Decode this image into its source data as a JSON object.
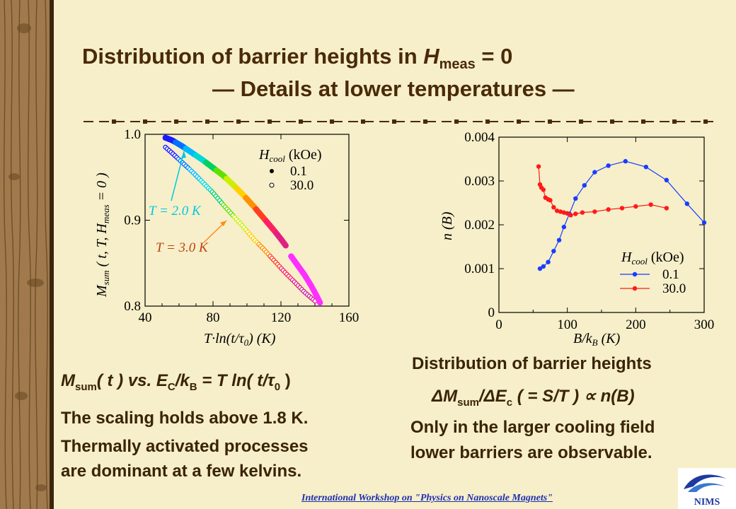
{
  "slide": {
    "title_line1_a": "Distribution of barrier heights in ",
    "title_line1_H": "H",
    "title_line1_sub": "meas",
    "title_line1_b": " = 0",
    "title_line2": "— Details at lower temperatures —",
    "left_caption_M": "M",
    "left_caption_sub": "sum",
    "left_caption_rest": "( t ) vs. E",
    "left_caption_subC": "C",
    "left_caption_k": "/k",
    "left_caption_subB": "B",
    "left_caption_end": " = T ln( t/τ",
    "left_caption_sub0": "0",
    "left_caption_close": " )",
    "left_text": [
      "The scaling holds above 1.8 K.",
      "Thermally activated processes",
      "are dominant at a few kelvins."
    ],
    "right_heading": "Distribution of barrier heights",
    "right_formula_a": "ΔM",
    "right_formula_sub": "sum",
    "right_formula_b": "/ΔE",
    "right_formula_subc": "c",
    "right_formula_c": " ( = S/T ) ∝ n(B)",
    "right_text": [
      "Only in the larger cooling field",
      "lower barriers are observable."
    ],
    "footer": "International Workshop on \"Physics on Nanoscale Magnets\"",
    "logo_text": "NIMS"
  },
  "chart_data": [
    {
      "type": "scatter",
      "xlabel": "T·ln(t/τ0) (K)",
      "ylabel": "Msum ( t, T, Hmeas = 0 )",
      "xlim": [
        40,
        160
      ],
      "ylim": [
        0.8,
        1.0
      ],
      "xticks": [
        40,
        80,
        120,
        160
      ],
      "yticks": [
        0.8,
        0.9,
        1.0
      ],
      "legend_title": "Hcool (kOe)",
      "legend_position": "top-right",
      "annotations": [
        "T = 2.0 K",
        "T = 3.0 K"
      ],
      "series": [
        {
          "name": "0.1",
          "marker": "filled",
          "points": [
            [
              52,
              0.996
            ],
            [
              56,
              0.993
            ],
            [
              62,
              0.986
            ],
            [
              68,
              0.978
            ],
            [
              74,
              0.97
            ],
            [
              80,
              0.961
            ],
            [
              86,
              0.952
            ],
            [
              92,
              0.941
            ],
            [
              98,
              0.929
            ],
            [
              104,
              0.916
            ],
            [
              110,
              0.902
            ],
            [
              116,
              0.888
            ],
            [
              120,
              0.878
            ],
            [
              123,
              0.87
            ]
          ],
          "colors": [
            "#1a1aff",
            "#00b8ff",
            "#00d8d8",
            "#00d060",
            "#60e000",
            "#d8f000",
            "#ffd000",
            "#ff9000",
            "#ff3030",
            "#ff2060",
            "#e02080",
            "#d02090"
          ]
        },
        {
          "name": "30.0",
          "marker": "open",
          "points": [
            [
              52,
              0.985
            ],
            [
              56,
              0.978
            ],
            [
              62,
              0.967
            ],
            [
              68,
              0.956
            ],
            [
              74,
              0.944
            ],
            [
              80,
              0.932
            ],
            [
              86,
              0.918
            ],
            [
              92,
              0.905
            ],
            [
              98,
              0.892
            ],
            [
              104,
              0.878
            ],
            [
              110,
              0.866
            ],
            [
              116,
              0.853
            ],
            [
              122,
              0.84
            ],
            [
              128,
              0.828
            ],
            [
              134,
              0.816
            ],
            [
              140,
              0.806
            ]
          ],
          "colors_note": "rainbow"
        },
        {
          "name": "",
          "marker": "filled",
          "points": [
            [
              126,
              0.858
            ],
            [
              130,
              0.847
            ],
            [
              134,
              0.836
            ],
            [
              138,
              0.823
            ],
            [
              141,
              0.812
            ],
            [
              143,
              0.804
            ]
          ]
        }
      ]
    },
    {
      "type": "line",
      "xlabel": "B/kB (K)",
      "ylabel": "n (B)",
      "xlim": [
        0,
        300
      ],
      "ylim": [
        0,
        0.004
      ],
      "xticks": [
        0,
        100,
        200,
        300
      ],
      "yticks": [
        0,
        0.001,
        0.002,
        0.003,
        0.004
      ],
      "ytick_labels": [
        "0",
        "0.001",
        "0.002",
        "0.003",
        "0.004"
      ],
      "legend_title": "Hcool (kOe)",
      "legend_position": "bottom-right",
      "series": [
        {
          "name": "0.1",
          "color": "#1a3cff",
          "x": [
            60,
            65,
            72,
            80,
            88,
            95,
            103,
            112,
            125,
            140,
            160,
            185,
            215,
            245,
            275,
            300
          ],
          "y": [
            0.001,
            0.00105,
            0.00115,
            0.0014,
            0.00165,
            0.00195,
            0.00225,
            0.0026,
            0.0029,
            0.0032,
            0.00335,
            0.00345,
            0.00332,
            0.00302,
            0.00248,
            0.00205
          ]
        },
        {
          "name": "30.0",
          "color": "#ff1a1a",
          "x": [
            58,
            60,
            62,
            65,
            68,
            72,
            75,
            80,
            85,
            90,
            95,
            100,
            105,
            112,
            122,
            140,
            160,
            180,
            200,
            222,
            245
          ],
          "y": [
            0.00333,
            0.00292,
            0.00285,
            0.0028,
            0.00262,
            0.00258,
            0.00256,
            0.0024,
            0.00232,
            0.0023,
            0.00228,
            0.00226,
            0.00222,
            0.00225,
            0.00228,
            0.0023,
            0.00235,
            0.00238,
            0.00242,
            0.00246,
            0.00238
          ]
        }
      ]
    }
  ]
}
